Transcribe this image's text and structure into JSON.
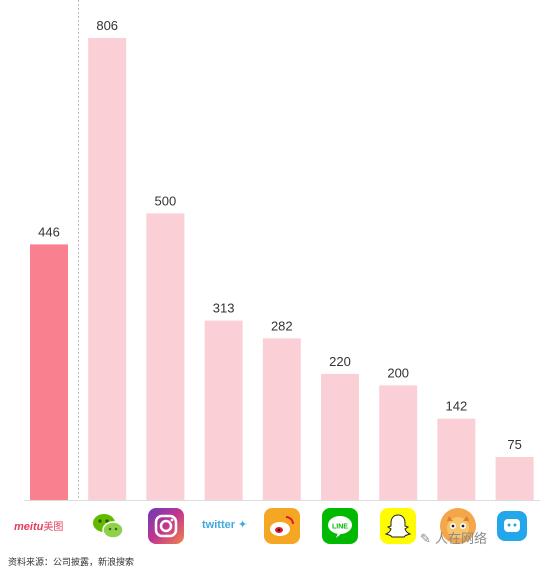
{
  "chart_data": {
    "type": "bar",
    "categories": [
      "meitu",
      "WeChat",
      "Instagram",
      "Twitter",
      "Weibo",
      "LINE",
      "Snapchat",
      "Tantan",
      "Momo"
    ],
    "values": [
      446,
      806,
      500,
      313,
      282,
      220,
      200,
      142,
      75
    ],
    "ylim": [
      0,
      806
    ],
    "grid": false,
    "legend": "none",
    "colors": {
      "highlight": "#f9808f",
      "default": "#fbcfd6",
      "divider": "#bbbbbb"
    }
  },
  "brand_labels": {
    "meitu_text": "meitu",
    "meitu_cn": "美图",
    "twitter_text": "twitter"
  },
  "icons": [
    "meitu-logo",
    "wechat-icon",
    "instagram-icon",
    "twitter-logo",
    "weibo-icon",
    "line-icon",
    "snapchat-icon",
    "tantan-icon",
    "momo-icon"
  ],
  "footer": {
    "source": "资料来源：公司披露，新浪搜索"
  },
  "watermark": "人在网络"
}
